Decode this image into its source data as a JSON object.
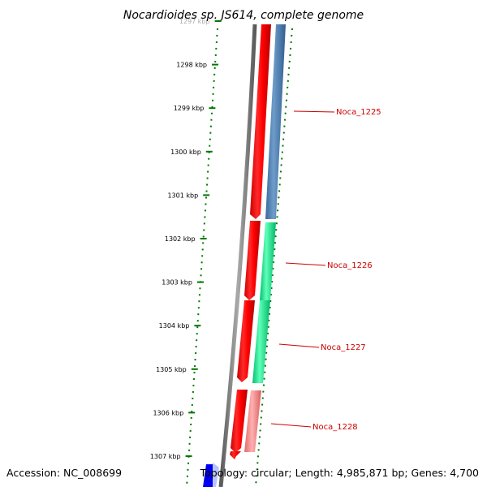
{
  "title": "Nocardioides sp. JS614, complete genome",
  "footer": {
    "accession": "Accession: NC_008699",
    "summary": "Topology: circular; Length: 4,985,871 bp; Genes: 4,700"
  },
  "ruler": {
    "ticks": [
      {
        "label": "1297 kbp",
        "faded": true
      },
      {
        "label": "1298 kbp"
      },
      {
        "label": "1299 kbp"
      },
      {
        "label": "1300 kbp"
      },
      {
        "label": "1301 kbp"
      },
      {
        "label": "1302 kbp"
      },
      {
        "label": "1303 kbp"
      },
      {
        "label": "1304 kbp"
      },
      {
        "label": "1305 kbp"
      },
      {
        "label": "1306 kbp"
      },
      {
        "label": "1307 kbp"
      }
    ]
  },
  "genes": [
    {
      "name": "Noca_1225",
      "color": "#4a7fb5"
    },
    {
      "name": "Noca_1226",
      "color": "#00e58a"
    },
    {
      "name": "Noca_1227",
      "color": "#00e58a"
    },
    {
      "name": "Noca_1228",
      "color": "#f08080"
    }
  ],
  "colors": {
    "cds": "#ff0000",
    "backbone": "#808080",
    "ruler_dots": "#007700",
    "label": "#cc0000",
    "bottom_feature": "#0000ee"
  }
}
